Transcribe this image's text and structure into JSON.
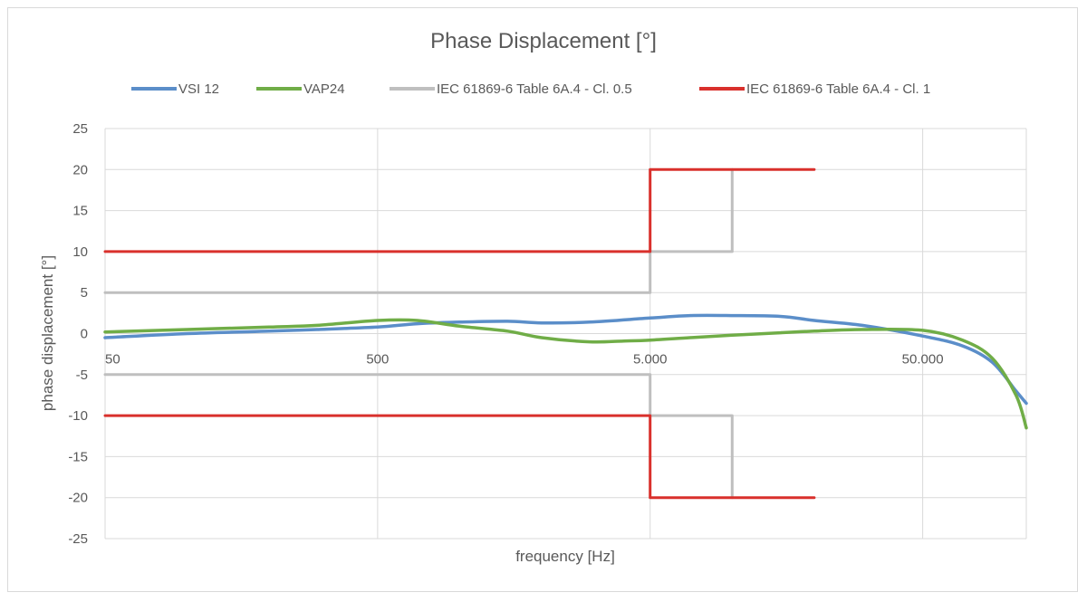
{
  "chart_data": {
    "type": "line",
    "title": "Phase Displacement [°]",
    "xlabel": "frequency [Hz]",
    "ylabel": "phase displacement [°]",
    "x_scale": "log",
    "xlim": [
      50,
      120000
    ],
    "ylim": [
      -25,
      25
    ],
    "y_ticks": [
      "25",
      "20",
      "15",
      "10",
      "5",
      "0",
      "-5",
      "-10",
      "-15",
      "-20",
      "-25"
    ],
    "x_ticks": [
      {
        "value": 50,
        "label": "50"
      },
      {
        "value": 500,
        "label": "500"
      },
      {
        "value": 5000,
        "label": "5.000"
      },
      {
        "value": 50000,
        "label": "50.000"
      }
    ],
    "grid": true,
    "legend_position": "top",
    "series": [
      {
        "name": "VSI 12",
        "color": "#5b8ec9",
        "x": [
          50,
          100,
          200,
          300,
          500,
          700,
          1000,
          1500,
          2000,
          3000,
          5000,
          7000,
          10000,
          15000,
          20000,
          30000,
          50000,
          70000,
          90000,
          110000,
          120000
        ],
        "y": [
          -0.5,
          0.0,
          0.3,
          0.5,
          0.8,
          1.2,
          1.4,
          1.5,
          1.3,
          1.4,
          1.9,
          2.2,
          2.2,
          2.1,
          1.6,
          1.0,
          -0.3,
          -1.5,
          -3.5,
          -7.0,
          -8.5
        ]
      },
      {
        "name": "VAP24",
        "color": "#70ad47",
        "x": [
          50,
          100,
          200,
          300,
          500,
          700,
          1000,
          1500,
          2000,
          3000,
          4000,
          5000,
          7000,
          10000,
          15000,
          20000,
          30000,
          50000,
          70000,
          90000,
          110000,
          120000
        ],
        "y": [
          0.2,
          0.5,
          0.8,
          1.0,
          1.6,
          1.6,
          0.9,
          0.3,
          -0.5,
          -1.0,
          -0.9,
          -0.8,
          -0.5,
          -0.2,
          0.1,
          0.3,
          0.5,
          0.4,
          -0.8,
          -3.0,
          -7.5,
          -11.5
        ]
      },
      {
        "name": "IEC 61869-6 Table 6A.4 - Cl. 0.5",
        "color": "#bfbfbf",
        "x": [
          50,
          5000,
          5000,
          10000,
          10000
        ],
        "y": [
          5,
          5,
          10,
          10,
          20
        ]
      },
      {
        "name": "IEC 61869-6 Table 6A.4 - Cl. 0.5",
        "color": "#bfbfbf",
        "x": [
          50,
          5000,
          5000,
          10000,
          10000
        ],
        "y": [
          -5,
          -5,
          -10,
          -10,
          -20
        ]
      },
      {
        "name": "IEC 61869-6 Table 6A.4 - Cl. 1",
        "color": "#d9302c",
        "x": [
          50,
          5000,
          5000,
          20000
        ],
        "y": [
          10,
          10,
          20,
          20
        ]
      },
      {
        "name": "IEC 61869-6 Table 6A.4 - Cl. 1",
        "color": "#d9302c",
        "x": [
          50,
          5000,
          5000,
          20000
        ],
        "y": [
          -10,
          -10,
          -20,
          -20
        ]
      }
    ],
    "legend": [
      {
        "label": "VSI 12",
        "color": "#5b8ec9"
      },
      {
        "label": "VAP24",
        "color": "#70ad47"
      },
      {
        "label": "IEC 61869-6 Table 6A.4 - Cl. 0.5",
        "color": "#bfbfbf"
      },
      {
        "label": "IEC 61869-6 Table 6A.4 - Cl. 1",
        "color": "#d9302c"
      }
    ]
  }
}
